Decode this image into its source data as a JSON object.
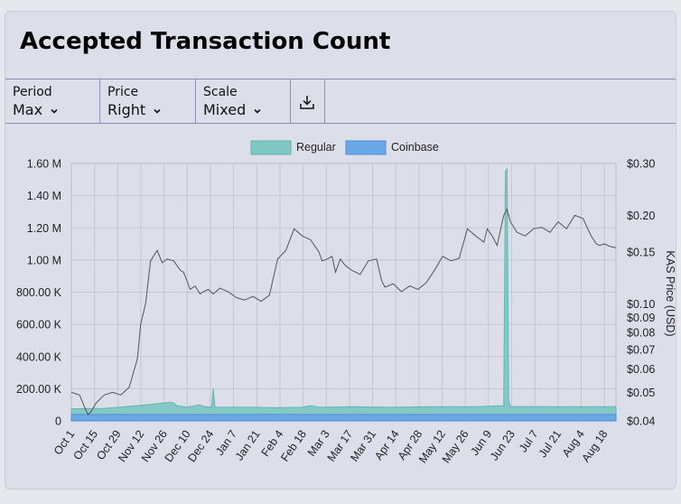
{
  "title": "Accepted Transaction Count",
  "controls": {
    "period": {
      "label": "Period",
      "value": "Max"
    },
    "price": {
      "label": "Price",
      "value": "Right"
    },
    "scale": {
      "label": "Scale",
      "value": "Mixed"
    },
    "download_icon": "download-icon"
  },
  "colors": {
    "regular": "#7fc7c4",
    "coinbase": "#6aa7e8",
    "price_line": "#555555",
    "grid": "#c4c6d2"
  },
  "chart_data": {
    "type": "area",
    "legend": [
      "Regular",
      "Coinbase"
    ],
    "legend_position": "top-center",
    "grid": true,
    "x_ticks": [
      "Oct 1",
      "Oct 15",
      "Oct 29",
      "Nov 12",
      "Nov 26",
      "Dec 10",
      "Dec 24",
      "Jan 7",
      "Jan 21",
      "Feb 4",
      "Feb 18",
      "Mar 3",
      "Mar 17",
      "Mar 31",
      "Apr 14",
      "Apr 28",
      "May 12",
      "May 26",
      "Jun 9",
      "Jun 23",
      "Jul 7",
      "Jul 21",
      "Aug 4",
      "Aug 18"
    ],
    "y_left": {
      "ticks": [
        "0",
        "200.00 K",
        "400.00 K",
        "600.00 K",
        "800.00 K",
        "1.00 M",
        "1.20 M",
        "1.40 M",
        "1.60 M"
      ],
      "ylim": [
        0,
        1600000
      ]
    },
    "y_right": {
      "label": "KAS Price (USD)",
      "ticks": [
        "$0.04",
        "$0.05",
        "$0.06",
        "$0.07",
        "$0.08",
        "$0.09",
        "$0.10",
        "$0.15",
        "$0.20",
        "$0.30"
      ],
      "tick_values": [
        0.04,
        0.05,
        0.06,
        0.07,
        0.08,
        0.09,
        0.1,
        0.15,
        0.2,
        0.3
      ],
      "ylim": [
        0.04,
        0.3
      ],
      "scale": "log"
    },
    "series": [
      {
        "name": "Coinbase",
        "x_days": [
          0,
          30,
          60,
          90,
          120,
          150,
          180,
          210,
          240,
          270,
          300,
          330
        ],
        "values": [
          40000,
          40000,
          40000,
          40000,
          40000,
          40000,
          40000,
          40000,
          40000,
          40000,
          40000,
          40000
        ]
      },
      {
        "name": "Regular",
        "x_days": [
          0,
          20,
          40,
          55,
          60,
          62,
          64,
          70,
          75,
          78,
          80,
          85,
          86,
          87,
          95,
          110,
          125,
          140,
          145,
          150,
          170,
          190,
          220,
          245,
          262,
          263,
          264,
          265,
          266,
          290,
          320,
          330
        ],
        "values": [
          75000,
          78000,
          95000,
          110000,
          115000,
          112000,
          95000,
          85000,
          95000,
          100000,
          90000,
          85000,
          200000,
          85000,
          85000,
          85000,
          82000,
          85000,
          95000,
          85000,
          88000,
          85000,
          88000,
          88000,
          95000,
          1550000,
          1570000,
          130000,
          90000,
          88000,
          88000,
          88000
        ]
      },
      {
        "name": "KAS Price (USD)",
        "x_days": [
          0,
          5,
          10,
          12,
          15,
          20,
          25,
          30,
          35,
          40,
          42,
          45,
          48,
          52,
          55,
          58,
          62,
          64,
          66,
          68,
          72,
          75,
          78,
          80,
          83,
          86,
          90,
          95,
          100,
          105,
          110,
          115,
          120,
          125,
          130,
          135,
          140,
          145,
          150,
          152,
          155,
          158,
          160,
          163,
          166,
          170,
          175,
          180,
          185,
          188,
          190,
          195,
          200,
          205,
          210,
          215,
          220,
          225,
          230,
          235,
          240,
          245,
          250,
          252,
          255,
          258,
          262,
          264,
          266,
          270,
          275,
          280,
          285,
          290,
          295,
          300,
          305,
          310,
          315,
          318,
          320,
          323,
          326,
          330
        ],
        "values": [
          0.05,
          0.049,
          0.042,
          0.043,
          0.046,
          0.049,
          0.05,
          0.049,
          0.052,
          0.065,
          0.085,
          0.1,
          0.14,
          0.152,
          0.138,
          0.142,
          0.14,
          0.135,
          0.13,
          0.128,
          0.112,
          0.115,
          0.108,
          0.11,
          0.112,
          0.108,
          0.113,
          0.11,
          0.105,
          0.103,
          0.106,
          0.102,
          0.107,
          0.142,
          0.152,
          0.18,
          0.17,
          0.165,
          0.15,
          0.14,
          0.142,
          0.145,
          0.128,
          0.142,
          0.135,
          0.13,
          0.126,
          0.14,
          0.142,
          0.12,
          0.114,
          0.117,
          0.11,
          0.115,
          0.112,
          0.118,
          0.13,
          0.145,
          0.14,
          0.143,
          0.18,
          0.17,
          0.162,
          0.18,
          0.17,
          0.158,
          0.2,
          0.21,
          0.19,
          0.175,
          0.17,
          0.18,
          0.182,
          0.175,
          0.19,
          0.18,
          0.2,
          0.195,
          0.17,
          0.16,
          0.158,
          0.16,
          0.157,
          0.155
        ]
      }
    ]
  }
}
